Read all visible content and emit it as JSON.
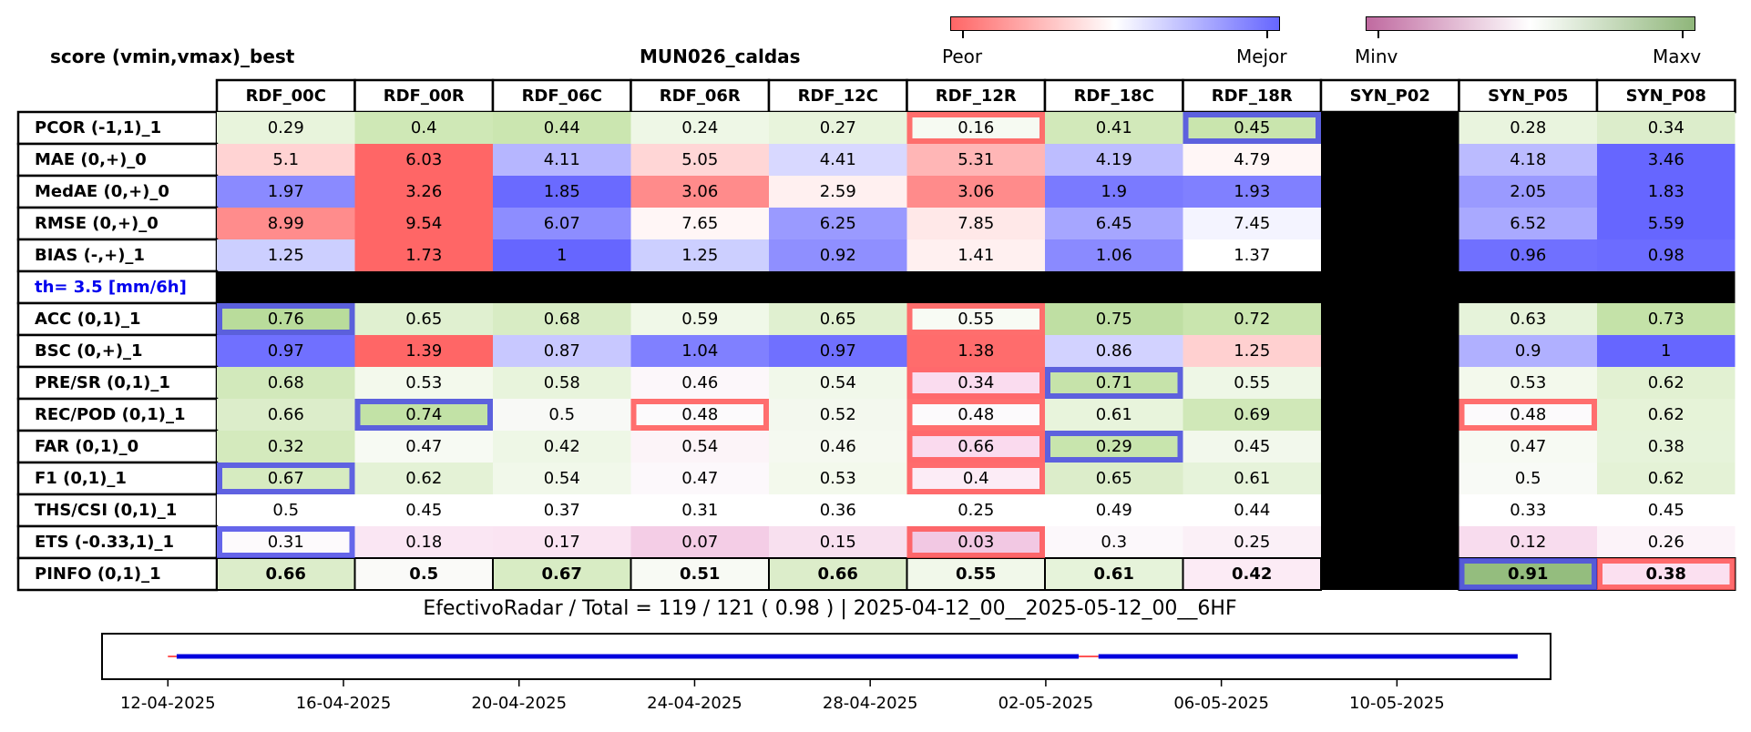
{
  "header": {
    "left_title": "score (vmin,vmax)_best",
    "center_title": "MUN026_caldas",
    "colorbar_quality": {
      "low_label": "Peor",
      "high_label": "Mejor",
      "colors": [
        "#ff6666",
        "#ffffff",
        "#6666ff"
      ]
    },
    "colorbar_value": {
      "low_label": "Minv",
      "high_label": "Maxv",
      "colors": [
        "#c06aa0",
        "#ffffff",
        "#8fb67a"
      ]
    }
  },
  "chart_data": {
    "type": "table",
    "columns": [
      "RDF_00C",
      "RDF_00R",
      "RDF_06C",
      "RDF_06R",
      "RDF_12C",
      "RDF_12R",
      "RDF_18C",
      "RDF_18R",
      "SYN_P02",
      "SYN_P05",
      "SYN_P08"
    ],
    "empty_column": "SYN_P02",
    "rows": [
      {
        "label": "PCOR (-1,1)_1",
        "values": [
          0.29,
          0.4,
          0.44,
          0.24,
          0.27,
          0.16,
          0.41,
          0.45,
          null,
          0.28,
          0.34
        ],
        "colors": [
          "#e8f4dc",
          "#cfe8b6",
          "#cbe6b0",
          "#eef7e6",
          "#e8f4dc",
          "#f6faf2",
          "#d2e9ba",
          "#c9e5ad",
          "",
          "#e9f4de",
          "#dcedcb"
        ],
        "worst": 5,
        "best": 7
      },
      {
        "label": "MAE (0,+)_0",
        "values": [
          5.1,
          6.03,
          4.11,
          5.05,
          4.41,
          5.31,
          4.19,
          4.79,
          null,
          4.18,
          3.46
        ],
        "colors": [
          "#ffd3d3",
          "#ff6666",
          "#b6b6ff",
          "#ffd6d6",
          "#d8d8ff",
          "#ffb6b6",
          "#bdbdff",
          "#fff6f6",
          "",
          "#bbbbff",
          "#6666ff"
        ],
        "worst": null,
        "best": null
      },
      {
        "label": "MedAE (0,+)_0",
        "values": [
          1.97,
          3.26,
          1.85,
          3.06,
          2.59,
          3.06,
          1.9,
          1.93,
          null,
          2.05,
          1.83
        ],
        "colors": [
          "#8a8aff",
          "#ff6666",
          "#6a6aff",
          "#ff8b8b",
          "#fff0f0",
          "#ff8b8b",
          "#7a7aff",
          "#8080ff",
          "",
          "#9a9aff",
          "#6666ff"
        ],
        "worst": null,
        "best": null
      },
      {
        "label": "RMSE (0,+)_0",
        "values": [
          8.99,
          9.54,
          6.07,
          7.65,
          6.25,
          7.85,
          6.45,
          7.45,
          null,
          6.52,
          5.59
        ],
        "colors": [
          "#ff8c8c",
          "#ff6666",
          "#8d8dff",
          "#fff6f6",
          "#9a9aff",
          "#ffe8e8",
          "#a6a6ff",
          "#f4f4ff",
          "",
          "#a9a9ff",
          "#6666ff"
        ],
        "worst": null,
        "best": null
      },
      {
        "label": "BIAS (-,+)_1",
        "values": [
          1.25,
          1.73,
          1.0,
          1.25,
          0.92,
          1.41,
          1.06,
          1.37,
          null,
          0.96,
          0.98
        ],
        "colors": [
          "#cccfff",
          "#ff6666",
          "#6666ff",
          "#cccfff",
          "#8f8fff",
          "#fff0f0",
          "#8a8aff",
          "#ffffff",
          "",
          "#7070ff",
          "#6c6cff"
        ],
        "worst": null,
        "best": null
      },
      {
        "label": "th= 3.5 [mm/6h]",
        "section": true
      },
      {
        "label": "ACC (0,1)_1",
        "values": [
          0.76,
          0.65,
          0.68,
          0.59,
          0.65,
          0.55,
          0.75,
          0.72,
          null,
          0.63,
          0.73
        ],
        "colors": [
          "#b9dc9b",
          "#e0f0d0",
          "#d8ecc4",
          "#f0f8e8",
          "#e0f0d0",
          "#f8fbf4",
          "#bfdfa3",
          "#c9e5ae",
          "",
          "#e6f3da",
          "#c4e2a8"
        ],
        "worst": 5,
        "best": 0
      },
      {
        "label": "BSC (0,+)_1",
        "values": [
          0.97,
          1.39,
          0.87,
          1.04,
          0.97,
          1.38,
          0.86,
          1.25,
          null,
          0.9,
          1.0
        ],
        "colors": [
          "#7070ff",
          "#ff6666",
          "#c8c8ff",
          "#8080ff",
          "#7070ff",
          "#ff6c6c",
          "#d2d2ff",
          "#ffd0d0",
          "",
          "#b0b0ff",
          "#6666ff"
        ],
        "worst": null,
        "best": null
      },
      {
        "label": "PRE/SR (0,1)_1",
        "values": [
          0.68,
          0.53,
          0.58,
          0.46,
          0.54,
          0.34,
          0.71,
          0.55,
          null,
          0.53,
          0.62
        ],
        "colors": [
          "#d2e9bb",
          "#f3f9ec",
          "#e8f4dc",
          "#fcf7fa",
          "#f1f8ea",
          "#fadcef",
          "#c6e3aa",
          "#eef7e6",
          "",
          "#f3f9ec",
          "#e2f1d2"
        ],
        "worst": 5,
        "best": 6
      },
      {
        "label": "REC/POD (0,1)_1",
        "values": [
          0.66,
          0.74,
          0.5,
          0.48,
          0.52,
          0.48,
          0.61,
          0.69,
          null,
          0.48,
          0.62
        ],
        "colors": [
          "#dcedca",
          "#c2e2a6",
          "#f8f9f6",
          "#fcfafc",
          "#f3f8ee",
          "#fcfafc",
          "#e8f4dc",
          "#d0e8b8",
          "",
          "#fcfafc",
          "#e6f3d8"
        ],
        "worst": [
          3,
          5,
          9
        ],
        "best": 1
      },
      {
        "label": "FAR (0,1)_0",
        "values": [
          0.32,
          0.47,
          0.42,
          0.54,
          0.46,
          0.66,
          0.29,
          0.45,
          null,
          0.47,
          0.38
        ],
        "colors": [
          "#d4eabd",
          "#f7faf3",
          "#eef7e6",
          "#fcf4f8",
          "#f5f9f0",
          "#fadaee",
          "#c8e5ad",
          "#f2f8ec",
          "",
          "#f7faf3",
          "#e6f3da"
        ],
        "worst": 5,
        "best": 6
      },
      {
        "label": "F1 (0,1)_1",
        "values": [
          0.67,
          0.62,
          0.54,
          0.47,
          0.53,
          0.4,
          0.65,
          0.61,
          null,
          0.5,
          0.62
        ],
        "colors": [
          "#d6ebc0",
          "#e4f2d6",
          "#f1f8ea",
          "#fcf8fb",
          "#f3f9ec",
          "#fcecf6",
          "#dcedca",
          "#e6f3da",
          "",
          "#f8faf6",
          "#e4f2d6"
        ],
        "worst": 5,
        "best": 0
      },
      {
        "label": "THS/CSI (0,1)_1",
        "values": [
          0.5,
          0.45,
          0.37,
          0.31,
          0.36,
          0.25,
          0.49,
          0.44,
          null,
          0.33,
          0.45
        ],
        "colors": [
          "#ffffff",
          "#ffffff",
          "#ffffff",
          "#ffffff",
          "#ffffff",
          "#ffffff",
          "#ffffff",
          "#ffffff",
          "",
          "#ffffff",
          "#ffffff"
        ],
        "worst": null,
        "best": null
      },
      {
        "label": "ETS (-0.33,1)_1",
        "values": [
          0.31,
          0.18,
          0.17,
          0.07,
          0.15,
          0.03,
          0.3,
          0.25,
          null,
          0.12,
          0.26
        ],
        "colors": [
          "#fdfafc",
          "#fae6f3",
          "#fae4f2",
          "#f4cde6",
          "#f8e0ef",
          "#f2c8e3",
          "#fcf8fb",
          "#fbf0f7",
          "",
          "#f8dcee",
          "#fcf3f9"
        ],
        "worst": 5,
        "best": 0
      },
      {
        "label": "PINFO (0,1)_1",
        "values": [
          0.66,
          0.5,
          0.67,
          0.51,
          0.66,
          0.55,
          0.61,
          0.42,
          null,
          0.91,
          0.38
        ],
        "colors": [
          "#dcedca",
          "#fafaf8",
          "#d8ecc4",
          "#f8faf4",
          "#dcedca",
          "#f1f8ea",
          "#e6f3da",
          "#fcebf5",
          "",
          "#94bd7e",
          "#fbe0f0"
        ],
        "worst": 10,
        "best": 9,
        "bold": true
      }
    ],
    "summary": "EfectivoRadar / Total  =  119 / 121 ( 0.98 ) | 2025-04-12_00__2025-05-12_00__6HF",
    "timeline": {
      "ticks": [
        "12-04-2025",
        "16-04-2025",
        "20-04-2025",
        "24-04-2025",
        "28-04-2025",
        "02-05-2025",
        "06-05-2025",
        "10-05-2025"
      ],
      "segments": [
        [
          0.2,
          20.75
        ],
        [
          21.2,
          30.75
        ]
      ],
      "gap_markers": [
        [
          0.0,
          0.2
        ],
        [
          20.75,
          21.2
        ]
      ],
      "x_range": [
        -1.5,
        31.5
      ]
    },
    "worst_color": "#ff5555",
    "best_color": "#4a4ae6"
  }
}
